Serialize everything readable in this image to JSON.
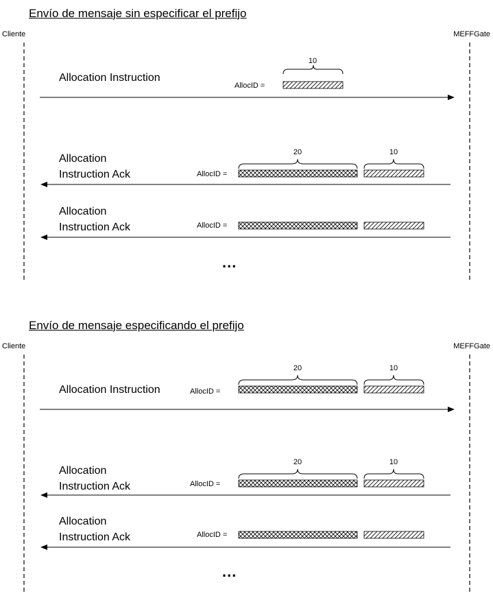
{
  "diagram1": {
    "title": "Envío de mensaje sin especificar el prefijo",
    "left_party": "Cliente",
    "right_party": "MEFFGate",
    "msg1": {
      "label": "Allocation Instruction",
      "alloc_label": "AllocID =",
      "num_b": "10"
    },
    "msg2": {
      "label_line1": "Allocation",
      "label_line2": "Instruction Ack",
      "alloc_label": "AllocID =",
      "num_a": "20",
      "num_b": "10"
    },
    "msg3": {
      "label_line1": "Allocation",
      "label_line2": "Instruction Ack",
      "alloc_label": "AllocID ="
    },
    "ellipsis": "..."
  },
  "diagram2": {
    "title": "Envío de mensaje especificando el prefijo",
    "left_party": "Cliente",
    "right_party": "MEFFGate",
    "msg1": {
      "label": "Allocation Instruction",
      "alloc_label": "AllocID =",
      "num_a": "20",
      "num_b": "10"
    },
    "msg2": {
      "label_line1": "Allocation",
      "label_line2": "Instruction Ack",
      "alloc_label": "AllocID =",
      "num_a": "20",
      "num_b": "10"
    },
    "msg3": {
      "label_line1": "Allocation",
      "label_line2": "Instruction Ack",
      "alloc_label": "AllocID ="
    },
    "ellipsis": "..."
  }
}
